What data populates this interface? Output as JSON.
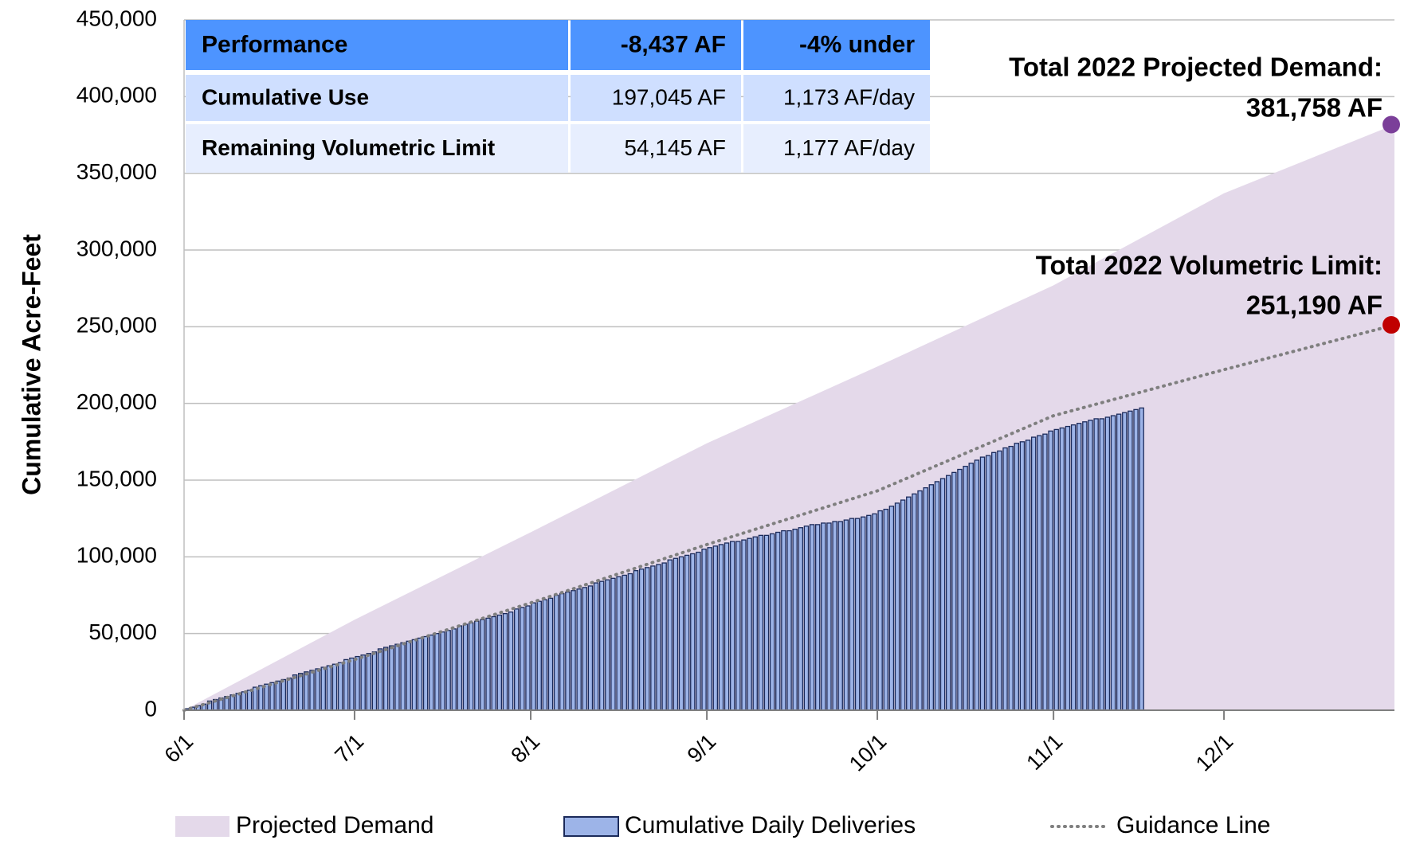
{
  "chart_data": {
    "type": "combo",
    "y_label": "Cumulative Acre-Feet",
    "xlim": [
      0,
      213
    ],
    "xticks": [
      {
        "value": 0,
        "label": "6/1"
      },
      {
        "value": 30,
        "label": "7/1"
      },
      {
        "value": 61,
        "label": "8/1"
      },
      {
        "value": 92,
        "label": "9/1"
      },
      {
        "value": 122,
        "label": "10/1"
      },
      {
        "value": 153,
        "label": "11/1"
      },
      {
        "value": 183,
        "label": "12/1"
      }
    ],
    "ylim": [
      0,
      450000
    ],
    "yticks": [
      0,
      {
        "value": 50000,
        "label": "50,000"
      },
      {
        "value": 100000,
        "label": "100,000"
      },
      {
        "value": 150000,
        "label": "150,000"
      },
      {
        "value": 200000,
        "label": "200,000"
      },
      {
        "value": 250000,
        "label": "250,000"
      },
      {
        "value": 300000,
        "label": "300,000"
      },
      {
        "value": 350000,
        "label": "350,000"
      },
      {
        "value": 400000,
        "label": "400,000"
      },
      {
        "value": 450000,
        "label": "450,000"
      }
    ],
    "grid": true,
    "legend": "bottom",
    "series": [
      {
        "name": "Projected Demand",
        "type": "area",
        "color": "#e4d9ea",
        "x": [
          0,
          30,
          61,
          92,
          122,
          153,
          183,
          213
        ],
        "values": [
          0,
          59000,
          116000,
          174000,
          224000,
          277000,
          337000,
          381758
        ]
      },
      {
        "name": "Cumulative Daily Deliveries",
        "type": "bar",
        "color": "#9db4e8",
        "x": [
          0,
          1,
          2,
          3,
          4,
          5,
          6,
          7,
          8,
          9,
          10,
          11,
          12,
          13,
          14,
          15,
          16,
          17,
          18,
          19,
          20,
          21,
          22,
          23,
          24,
          25,
          26,
          27,
          28,
          29,
          30,
          31,
          32,
          33,
          34,
          35,
          36,
          37,
          38,
          39,
          40,
          41,
          42,
          43,
          44,
          45,
          46,
          47,
          48,
          49,
          50,
          51,
          52,
          53,
          54,
          55,
          56,
          57,
          58,
          59,
          60,
          61,
          62,
          63,
          64,
          65,
          66,
          67,
          68,
          69,
          70,
          71,
          72,
          73,
          74,
          75,
          76,
          77,
          78,
          79,
          80,
          81,
          82,
          83,
          84,
          85,
          86,
          87,
          88,
          89,
          90,
          91,
          92,
          93,
          94,
          95,
          96,
          97,
          98,
          99,
          100,
          101,
          102,
          103,
          104,
          105,
          106,
          107,
          108,
          109,
          110,
          111,
          112,
          113,
          114,
          115,
          116,
          117,
          118,
          119,
          120,
          121,
          122,
          123,
          124,
          125,
          126,
          127,
          128,
          129,
          130,
          131,
          132,
          133,
          134,
          135,
          136,
          137,
          138,
          139,
          140,
          141,
          142,
          143,
          144,
          145,
          146,
          147,
          148,
          149,
          150,
          151,
          152,
          153,
          154,
          155,
          156,
          157,
          158,
          159,
          160,
          161,
          162,
          163,
          164,
          165,
          166,
          167,
          168
        ],
        "values": [
          1000,
          2000,
          3000,
          4000,
          6000,
          7000,
          8000,
          9000,
          10000,
          11000,
          12000,
          13000,
          15000,
          16000,
          17000,
          18000,
          19000,
          20000,
          21000,
          23000,
          24000,
          25000,
          26000,
          27000,
          28000,
          29000,
          30000,
          31000,
          33000,
          34000,
          35000,
          36000,
          37000,
          38000,
          40000,
          41000,
          42000,
          43000,
          44000,
          45000,
          46000,
          47000,
          48000,
          49000,
          50000,
          51000,
          52000,
          53000,
          55000,
          56000,
          57000,
          58000,
          59000,
          60000,
          61000,
          62000,
          63000,
          64000,
          66000,
          67000,
          68000,
          70000,
          71000,
          72000,
          73000,
          75000,
          76000,
          77000,
          78000,
          79000,
          80000,
          81000,
          83000,
          84000,
          85000,
          86000,
          87000,
          88000,
          89000,
          91000,
          92000,
          93000,
          94000,
          95000,
          96000,
          98000,
          99000,
          100000,
          101000,
          102000,
          103000,
          105000,
          106000,
          107000,
          108000,
          109000,
          110000,
          110000,
          111000,
          112000,
          113000,
          114000,
          114000,
          115000,
          116000,
          117000,
          117000,
          118000,
          119000,
          120000,
          121000,
          121000,
          122000,
          122000,
          123000,
          123000,
          124000,
          125000,
          125000,
          126000,
          127000,
          128000,
          130000,
          131000,
          133000,
          135000,
          137000,
          139000,
          141000,
          143000,
          145000,
          147000,
          149000,
          151000,
          153000,
          155000,
          157000,
          159000,
          161000,
          163000,
          165000,
          166000,
          168000,
          169000,
          171000,
          172000,
          174000,
          175000,
          176000,
          178000,
          179000,
          180000,
          182000,
          183000,
          184000,
          185000,
          186000,
          187000,
          188000,
          189000,
          190000,
          190000,
          191000,
          192000,
          193000,
          194000,
          195000,
          196000,
          197045
        ]
      },
      {
        "name": "Guidance Line",
        "type": "line",
        "color": "#7f7f7f",
        "x": [
          0,
          30,
          61,
          92,
          122,
          153,
          183,
          213
        ],
        "values": [
          0,
          33000,
          70000,
          108000,
          143000,
          192000,
          222000,
          251190
        ]
      }
    ],
    "annotations": [
      {
        "lines": [
          "Total 2022 Projected Demand:",
          "381,758 AF"
        ],
        "color": "#7b3f99",
        "series": 0
      },
      {
        "lines": [
          "Total 2022 Volumetric Limit:",
          "251,190 AF"
        ],
        "color": "#c00000",
        "series": 2
      }
    ]
  },
  "table": {
    "rows": [
      [
        "Performance",
        "-8,437 AF",
        "-4% under"
      ],
      [
        "Cumulative Use",
        "197,045 AF",
        "1,173 AF/day"
      ],
      [
        "Remaining Volumetric Limit",
        "54,145 AF",
        "1,177 AF/day"
      ]
    ]
  }
}
